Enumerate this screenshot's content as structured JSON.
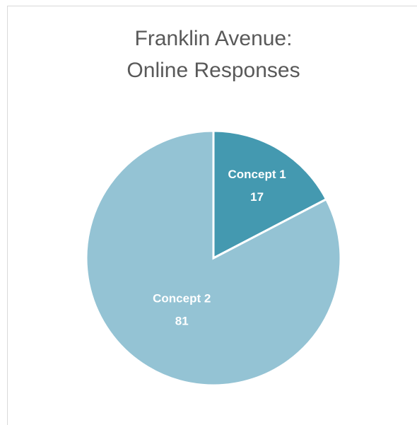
{
  "chart_data": {
    "type": "pie",
    "title": [
      "Franklin Avenue:",
      "Online Responses"
    ],
    "categories": [
      "Concept 1",
      "Concept 2"
    ],
    "values": [
      17,
      81
    ],
    "colors": [
      "#4499b0",
      "#94c3d4"
    ]
  }
}
